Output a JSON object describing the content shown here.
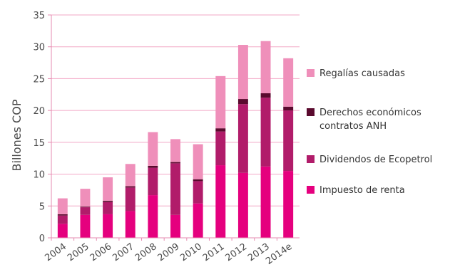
{
  "chart_data": {
    "type": "bar",
    "stacked": true,
    "categories": [
      "2004",
      "2005",
      "2006",
      "2007",
      "2008",
      "2009",
      "2010",
      "2011",
      "2012",
      "2013",
      "2014e"
    ],
    "ylabel": "Billones COP",
    "ylim": [
      0,
      35
    ],
    "yticks": [
      0,
      5,
      10,
      15,
      20,
      25,
      30,
      35
    ],
    "grid": true,
    "legend_position": "right",
    "series": [
      {
        "name": "Impuesto de renta",
        "color": "#e5007e",
        "values": [
          2.2,
          3.6,
          3.7,
          4.2,
          6.7,
          3.6,
          5.4,
          11.4,
          10.2,
          11.2,
          10.5
        ]
      },
      {
        "name": "Dividendos de Ecopetrol",
        "color": "#b11c6a",
        "values": [
          1.3,
          1.2,
          1.9,
          3.7,
          4.3,
          8.1,
          3.5,
          5.3,
          10.8,
          10.8,
          9.5
        ]
      },
      {
        "name": "Derechos económicos\ncontratos ANH",
        "color": "#5a0a2e",
        "values": [
          0.2,
          0.1,
          0.2,
          0.2,
          0.3,
          0.2,
          0.3,
          0.5,
          0.8,
          0.7,
          0.6
        ]
      },
      {
        "name": "Regalías causadas",
        "color": "#ef8fba",
        "values": [
          2.5,
          2.8,
          3.7,
          3.5,
          5.3,
          3.6,
          5.5,
          8.2,
          8.5,
          8.2,
          7.6
        ]
      }
    ],
    "legend_order": [
      3,
      2,
      1,
      0
    ]
  }
}
